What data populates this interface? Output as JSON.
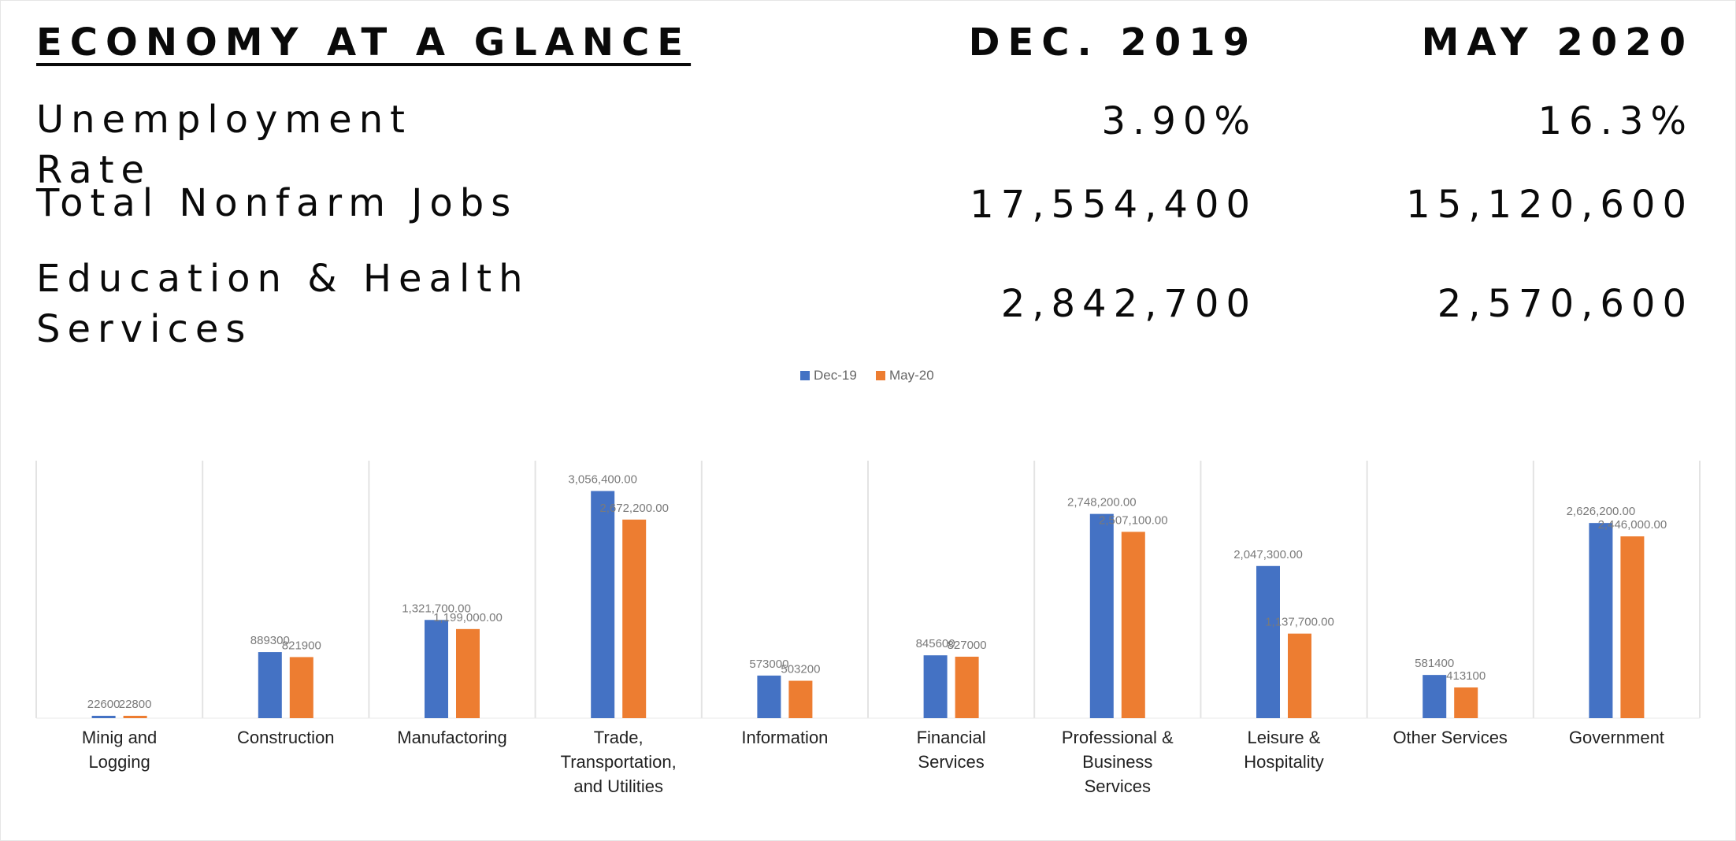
{
  "header": {
    "title": "ECONOMY AT A GLANCE",
    "col1": "DEC. 2019",
    "col2": "MAY 2020"
  },
  "rows": [
    {
      "label": "Unemployment Rate",
      "dec2019": "3.90%",
      "may2020": "16.3%"
    },
    {
      "label": "Total Nonfarm Jobs",
      "dec2019": "17,554,400",
      "may2020": "15,120,600"
    },
    {
      "label": "Education & Health Services",
      "dec2019": "2,842,700",
      "may2020": "2,570,600"
    }
  ],
  "colors": {
    "dec": "#4472c4",
    "may": "#ed7d31"
  },
  "chart_data": {
    "type": "bar",
    "legend_position": "top",
    "grid": "vertical separators only",
    "categories": [
      [
        "Minig and",
        "Logging"
      ],
      [
        "Construction"
      ],
      [
        "Manufactoring"
      ],
      [
        "Trade,",
        "Transportation,",
        "and Utilities"
      ],
      [
        "Information"
      ],
      [
        "Financial",
        "Services"
      ],
      [
        "Professional &",
        "Business",
        "Services"
      ],
      [
        "Leisure &",
        "Hospitality"
      ],
      [
        "Other Services"
      ],
      [
        "Government"
      ]
    ],
    "ylim": [
      0,
      3200000
    ],
    "series": [
      {
        "name": "Dec-19",
        "values": [
          22600,
          889300,
          1321700,
          3056400,
          573000,
          845600,
          2748200,
          2047300,
          581400,
          2626200
        ],
        "labels": [
          "22600",
          "889300",
          "1,321,700.00",
          "3,056,400.00",
          "573000",
          "845600",
          "2,748,200.00",
          "2,047,300.00",
          "581400",
          "2,626,200.00"
        ]
      },
      {
        "name": "May-20",
        "values": [
          22800,
          821900,
          1199000,
          2672200,
          503200,
          827000,
          2507100,
          1137700,
          413100,
          2446000
        ],
        "labels": [
          "22800",
          "821900",
          "1,199,000.00",
          "2,672,200.00",
          "503200",
          "827000",
          "2,507,100.00",
          "1,137,700.00",
          "413100",
          "2,446,000.00"
        ]
      }
    ]
  }
}
